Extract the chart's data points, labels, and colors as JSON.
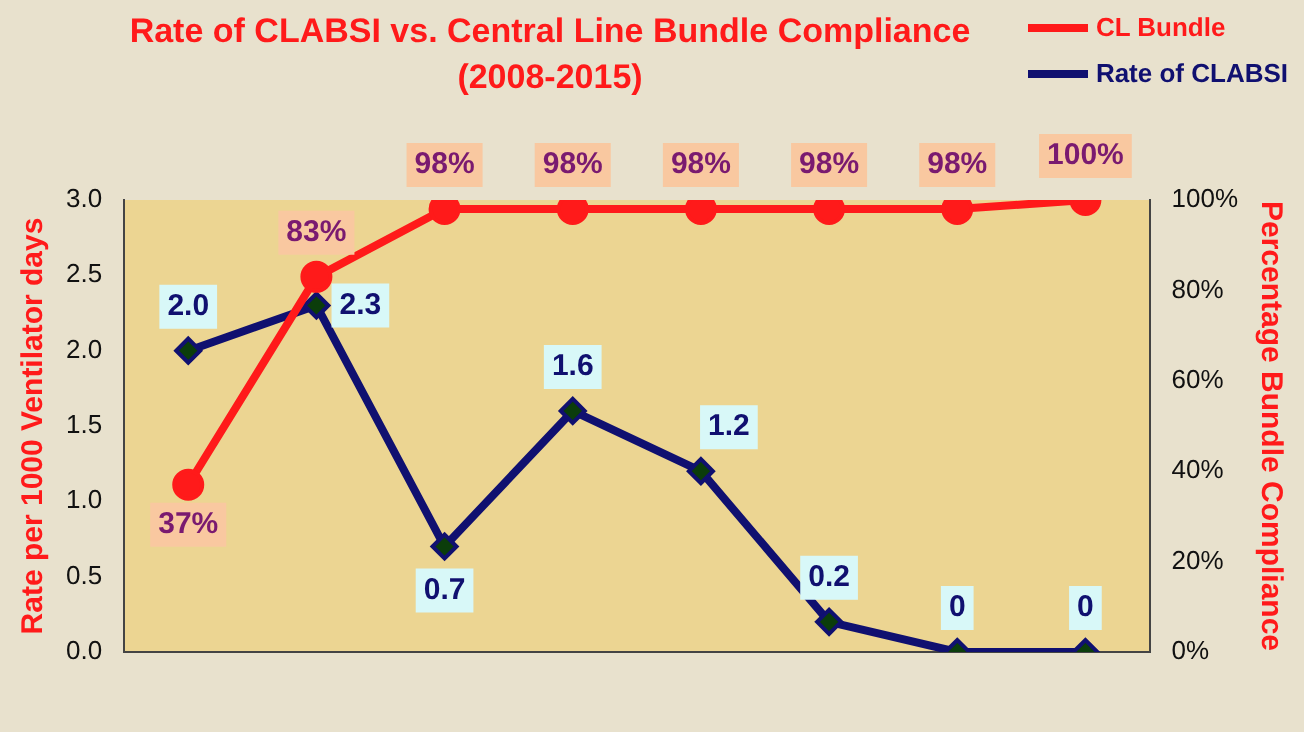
{
  "chart_data": {
    "type": "line",
    "title": "Rate of CLABSI vs. Central Line Bundle Compliance",
    "subtitle": "(2008-2015)",
    "ylabel": "Rate per 1000 Ventilator days",
    "y2label": "Percentage Bundle Compliance",
    "categories": [
      null,
      null,
      null,
      null,
      null,
      null,
      null,
      null
    ],
    "series": [
      {
        "name": "CL Bundle",
        "color": "#ff1a1a",
        "axis": "y2",
        "marker": "circle",
        "values": [
          37,
          83,
          98,
          98,
          98,
          98,
          98,
          100
        ],
        "value_labels": [
          "37%",
          "83%",
          "98%",
          "98%",
          "98%",
          "98%",
          "98%",
          "100%"
        ]
      },
      {
        "name": "Rate of CLABSI",
        "color": "#101070",
        "axis": "y",
        "marker": "diamond",
        "values": [
          2.0,
          2.3,
          0.7,
          1.6,
          1.2,
          0.2,
          0,
          0
        ],
        "value_labels": [
          "2.0",
          "2.3",
          "0.7",
          "1.6",
          "1.2",
          "0.2",
          "0",
          "0"
        ]
      }
    ],
    "ylim": [
      0,
      3
    ],
    "yticks": [
      {
        "value": 0,
        "label": "0.0"
      },
      {
        "value": 0.5,
        "label": "0.5"
      },
      {
        "value": 1,
        "label": "1.0"
      },
      {
        "value": 1.5,
        "label": "1.5"
      },
      {
        "value": 2,
        "label": "2.0"
      },
      {
        "value": 2.5,
        "label": "2.5"
      },
      {
        "value": 3,
        "label": "3.0"
      }
    ],
    "y2lim": [
      0,
      100
    ],
    "y2ticks": [
      {
        "value": 0,
        "label": "0%"
      },
      {
        "value": 20,
        "label": "20%"
      },
      {
        "value": 40,
        "label": "40%"
      },
      {
        "value": 60,
        "label": "60%"
      },
      {
        "value": 80,
        "label": "80%"
      },
      {
        "value": 100,
        "label": "100%"
      }
    ],
    "legend": "top right",
    "grid": false,
    "tick_labels": "y"
  }
}
